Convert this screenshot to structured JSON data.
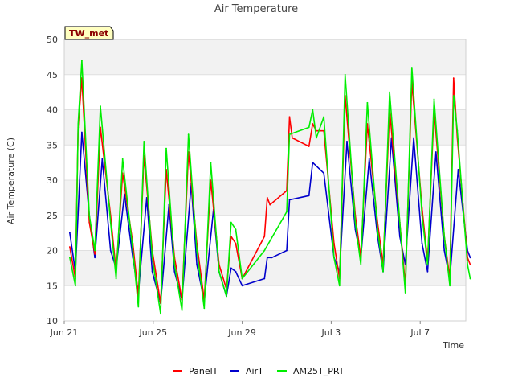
{
  "chart_data": {
    "type": "line",
    "title": "Air Temperature",
    "xlabel": "Time",
    "ylabel": "Air Temperature (C)",
    "station_badge": "TW_met",
    "x_unit": "date (2023 season)",
    "xlim": [
      "Jun 21",
      "Jul 9"
    ],
    "ylim": [
      10,
      50
    ],
    "yticks": [
      10,
      15,
      20,
      25,
      30,
      35,
      40,
      45,
      50
    ],
    "xticks": [
      "Jun 21",
      "Jun 25",
      "Jun 29",
      "Jul 3",
      "Jul 7"
    ],
    "grid": "horizontal bands",
    "legend_position": "bottom",
    "colors": {
      "PanelT": "#ff0000",
      "AirT": "#0000cc",
      "AM25T_PRT": "#00ee00"
    },
    "series": [
      {
        "name": "PanelT",
        "color": "#ff0000",
        "points": [
          [
            "Jun 21 06:00",
            20.5
          ],
          [
            "Jun 21 12:00",
            16
          ],
          [
            "Jun 21 15:00",
            37.5
          ],
          [
            "Jun 21 19:00",
            44.5
          ],
          [
            "Jun 22 03:00",
            24
          ],
          [
            "Jun 22 09:00",
            19.5
          ],
          [
            "Jun 22 15:00",
            37.5
          ],
          [
            "Jun 23 02:00",
            25
          ],
          [
            "Jun 23 08:00",
            17
          ],
          [
            "Jun 23 15:00",
            31
          ],
          [
            "Jun 24 02:00",
            21
          ],
          [
            "Jun 24 08:00",
            13.5
          ],
          [
            "Jun 24 14:00",
            33.5
          ],
          [
            "Jun 24 23:00",
            20
          ],
          [
            "Jun 25 08:00",
            12.5
          ],
          [
            "Jun 25 14:00",
            31.5
          ],
          [
            "Jun 25 23:00",
            19
          ],
          [
            "Jun 26 07:00",
            13
          ],
          [
            "Jun 26 14:00",
            34
          ],
          [
            "Jun 26 23:00",
            21
          ],
          [
            "Jun 27 07:00",
            13
          ],
          [
            "Jun 27 14:00",
            30
          ],
          [
            "Jun 27 23:00",
            18
          ],
          [
            "Jun 28 07:00",
            14.5
          ],
          [
            "Jun 28 12:00",
            22
          ],
          [
            "Jun 28 17:00",
            21
          ],
          [
            "Jun 29 00:00",
            16
          ],
          [
            "Jun 30 00:00",
            22
          ],
          [
            "Jun 30 03:00",
            27.5
          ],
          [
            "Jun 30 06:00",
            26.5
          ],
          [
            "Jul 1 00:00",
            28.5
          ],
          [
            "Jul 1 03:00",
            39
          ],
          [
            "Jul 1 06:00",
            36
          ],
          [
            "Jul 2 00:00",
            34.8
          ],
          [
            "Jul 2 04:00",
            38
          ],
          [
            "Jul 2 08:00",
            37
          ],
          [
            "Jul 2 16:00",
            37
          ],
          [
            "Jul 3 03:00",
            21
          ],
          [
            "Jul 3 09:00",
            16
          ],
          [
            "Jul 3 15:00",
            42
          ],
          [
            "Jul 4 02:00",
            25
          ],
          [
            "Jul 4 08:00",
            19
          ],
          [
            "Jul 4 15:00",
            38
          ],
          [
            "Jul 5 02:00",
            24
          ],
          [
            "Jul 5 08:00",
            18
          ],
          [
            "Jul 5 15:00",
            40
          ],
          [
            "Jul 6 02:00",
            24
          ],
          [
            "Jul 6 08:00",
            15
          ],
          [
            "Jul 6 15:00",
            44
          ],
          [
            "Jul 7 02:00",
            26
          ],
          [
            "Jul 7 08:00",
            18.5
          ],
          [
            "Jul 7 15:00",
            40
          ],
          [
            "Jul 8 02:00",
            22
          ],
          [
            "Jul 8 08:00",
            16
          ],
          [
            "Jul 8 12:00",
            44.5
          ],
          [
            "Jul 8 16:00",
            36
          ],
          [
            "Jul 9 03:00",
            19
          ],
          [
            "Jul 9 06:00",
            18
          ]
        ]
      },
      {
        "name": "AirT",
        "color": "#0000cc",
        "points": [
          [
            "Jun 21 06:00",
            22.5
          ],
          [
            "Jun 21 12:00",
            17
          ],
          [
            "Jun 21 19:00",
            36.8
          ],
          [
            "Jun 22 03:00",
            25
          ],
          [
            "Jun 22 09:00",
            19
          ],
          [
            "Jun 22 17:00",
            33
          ],
          [
            "Jun 23 02:00",
            20
          ],
          [
            "Jun 23 08:00",
            17.5
          ],
          [
            "Jun 23 17:00",
            28
          ],
          [
            "Jun 24 02:00",
            19
          ],
          [
            "Jun 24 08:00",
            14
          ],
          [
            "Jun 24 17:00",
            27.5
          ],
          [
            "Jun 24 23:00",
            17
          ],
          [
            "Jun 25 08:00",
            12.5
          ],
          [
            "Jun 25 17:00",
            26.5
          ],
          [
            "Jun 25 23:00",
            17
          ],
          [
            "Jun 26 07:00",
            13
          ],
          [
            "Jun 26 17:00",
            29.5
          ],
          [
            "Jun 26 23:00",
            18
          ],
          [
            "Jun 27 07:00",
            12.8
          ],
          [
            "Jun 27 17:00",
            25.8
          ],
          [
            "Jun 27 23:00",
            17
          ],
          [
            "Jun 28 07:00",
            13.5
          ],
          [
            "Jun 28 12:00",
            17.5
          ],
          [
            "Jun 28 17:00",
            17
          ],
          [
            "Jun 29 00:00",
            15
          ],
          [
            "Jun 30 00:00",
            16
          ],
          [
            "Jun 30 03:00",
            19
          ],
          [
            "Jun 30 08:00",
            19
          ],
          [
            "Jul 1 00:00",
            20
          ],
          [
            "Jul 1 03:00",
            27.2
          ],
          [
            "Jul 2 00:00",
            27.8
          ],
          [
            "Jul 2 04:00",
            32.5
          ],
          [
            "Jul 2 16:00",
            31
          ],
          [
            "Jul 3 03:00",
            19
          ],
          [
            "Jul 3 09:00",
            17
          ],
          [
            "Jul 3 17:00",
            35.5
          ],
          [
            "Jul 4 02:00",
            23
          ],
          [
            "Jul 4 08:00",
            19
          ],
          [
            "Jul 4 17:00",
            33
          ],
          [
            "Jul 5 02:00",
            22
          ],
          [
            "Jul 5 08:00",
            17
          ],
          [
            "Jul 5 17:00",
            36
          ],
          [
            "Jul 6 02:00",
            22
          ],
          [
            "Jul 6 08:00",
            18
          ],
          [
            "Jul 6 17:00",
            36
          ],
          [
            "Jul 7 02:00",
            21
          ],
          [
            "Jul 7 08:00",
            17
          ],
          [
            "Jul 7 17:00",
            34
          ],
          [
            "Jul 8 02:00",
            20
          ],
          [
            "Jul 8 08:00",
            16
          ],
          [
            "Jul 8 17:00",
            31.5
          ],
          [
            "Jul 9 03:00",
            20
          ],
          [
            "Jul 9 06:00",
            19
          ]
        ]
      },
      {
        "name": "AM25T_PRT",
        "color": "#00ee00",
        "points": [
          [
            "Jun 21 06:00",
            19
          ],
          [
            "Jun 21 12:00",
            15
          ],
          [
            "Jun 21 15:00",
            38
          ],
          [
            "Jun 21 19:00",
            47
          ],
          [
            "Jun 22 03:00",
            25
          ],
          [
            "Jun 22 09:00",
            20
          ],
          [
            "Jun 22 15:00",
            40.5
          ],
          [
            "Jun 23 02:00",
            24
          ],
          [
            "Jun 23 08:00",
            16
          ],
          [
            "Jun 23 15:00",
            33
          ],
          [
            "Jun 24 02:00",
            20
          ],
          [
            "Jun 24 08:00",
            12
          ],
          [
            "Jun 24 14:00",
            35.5
          ],
          [
            "Jun 24 23:00",
            19
          ],
          [
            "Jun 25 08:00",
            11
          ],
          [
            "Jun 25 14:00",
            34.5
          ],
          [
            "Jun 25 23:00",
            18
          ],
          [
            "Jun 26 07:00",
            11.5
          ],
          [
            "Jun 26 14:00",
            36.5
          ],
          [
            "Jun 26 23:00",
            20
          ],
          [
            "Jun 27 07:00",
            11.8
          ],
          [
            "Jun 27 14:00",
            32.5
          ],
          [
            "Jun 27 23:00",
            17
          ],
          [
            "Jun 28 07:00",
            13.5
          ],
          [
            "Jun 28 12:00",
            24
          ],
          [
            "Jun 28 17:00",
            23
          ],
          [
            "Jun 29 00:00",
            16
          ],
          [
            "Jun 30 00:00",
            20
          ],
          [
            "Jul 1 00:00",
            25.5
          ],
          [
            "Jul 1 03:00",
            36.5
          ],
          [
            "Jul 2 00:00",
            37.5
          ],
          [
            "Jul 2 04:00",
            40
          ],
          [
            "Jul 2 08:00",
            36
          ],
          [
            "Jul 2 16:00",
            39
          ],
          [
            "Jul 3 03:00",
            19
          ],
          [
            "Jul 3 09:00",
            15
          ],
          [
            "Jul 3 15:00",
            45
          ],
          [
            "Jul 4 02:00",
            24
          ],
          [
            "Jul 4 08:00",
            18
          ],
          [
            "Jul 4 15:00",
            41
          ],
          [
            "Jul 5 02:00",
            23
          ],
          [
            "Jul 5 08:00",
            17
          ],
          [
            "Jul 5 15:00",
            42.5
          ],
          [
            "Jul 6 02:00",
            24
          ],
          [
            "Jul 6 08:00",
            14
          ],
          [
            "Jul 6 15:00",
            46
          ],
          [
            "Jul 7 02:00",
            25
          ],
          [
            "Jul 7 08:00",
            18
          ],
          [
            "Jul 7 15:00",
            41.5
          ],
          [
            "Jul 8 02:00",
            22
          ],
          [
            "Jul 8 08:00",
            15
          ],
          [
            "Jul 8 12:00",
            42
          ],
          [
            "Jul 8 16:00",
            37
          ],
          [
            "Jul 9 03:00",
            18
          ],
          [
            "Jul 9 06:00",
            16
          ]
        ]
      }
    ]
  }
}
